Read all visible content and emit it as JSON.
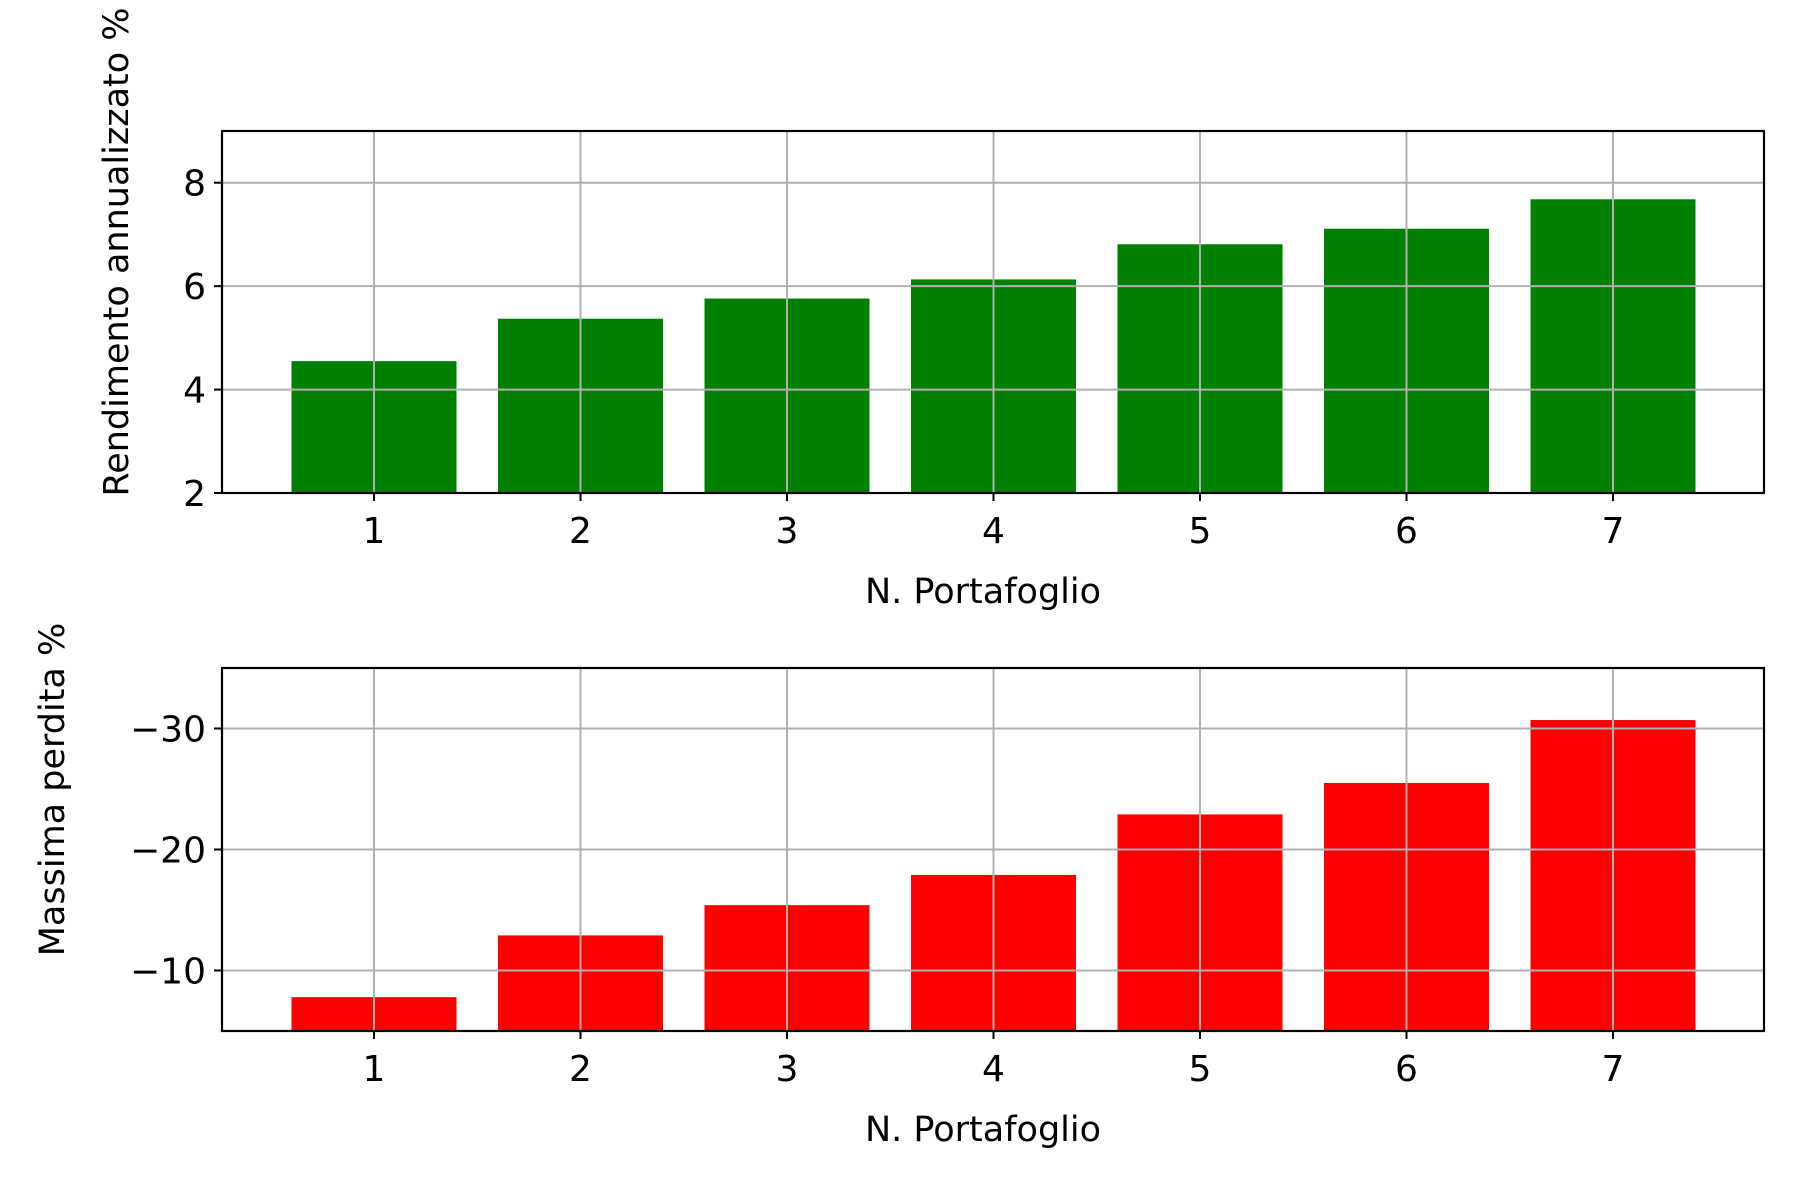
{
  "chart_data": [
    {
      "type": "bar",
      "xlabel": "N. Portafoglio",
      "ylabel": "Rendimento annualizzato %",
      "categories": [
        "1",
        "2",
        "3",
        "4",
        "5",
        "6",
        "7"
      ],
      "values": [
        4.55,
        5.37,
        5.76,
        6.13,
        6.81,
        7.11,
        7.68
      ],
      "ylim": [
        2,
        9
      ],
      "yticks": [
        2,
        4,
        6,
        8
      ],
      "ytick_labels": [
        "2",
        "4",
        "6",
        "8"
      ],
      "inverted_y": false,
      "color": "#008000",
      "grid": true
    },
    {
      "type": "bar",
      "xlabel": "N. Portafoglio",
      "ylabel": "Massima perdita %",
      "categories": [
        "1",
        "2",
        "3",
        "4",
        "5",
        "6",
        "7"
      ],
      "values": [
        -7.8,
        -12.9,
        -15.4,
        -17.9,
        -22.9,
        -25.5,
        -30.7
      ],
      "ylim": [
        -5,
        -35
      ],
      "yticks": [
        -10,
        -20,
        -30
      ],
      "ytick_labels": [
        "−10",
        "−20",
        "−30"
      ],
      "inverted_y": true,
      "color": "#ff0000",
      "grid": true
    }
  ]
}
